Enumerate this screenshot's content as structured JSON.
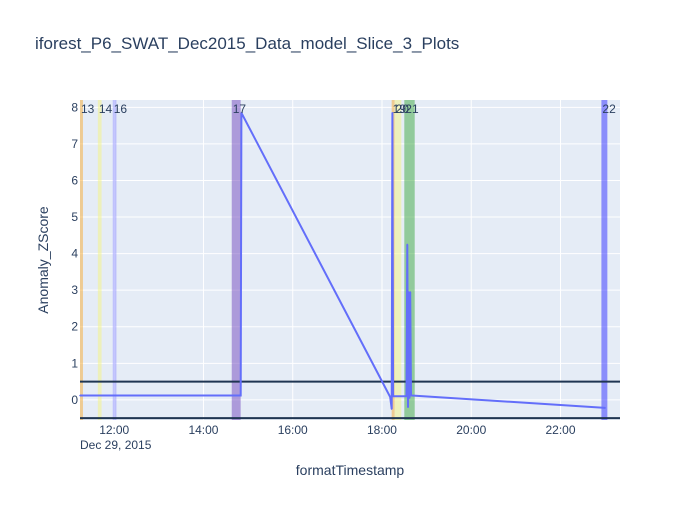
{
  "chart_data": {
    "type": "line",
    "title": "iforest_P6_SWAT_Dec2015_Data_model_Slice_3_Plots",
    "xlabel": "formatTimestamp",
    "ylabel": "Anomaly_ZScore",
    "x_range": [
      "2015-12-29 11:14",
      "2015-12-29 23:20"
    ],
    "ylim": [
      -0.55,
      8.2
    ],
    "x_ticks": [
      {
        "t": "2015-12-29 12:00",
        "label": "12:00"
      },
      {
        "t": "2015-12-29 14:00",
        "label": "14:00"
      },
      {
        "t": "2015-12-29 16:00",
        "label": "16:00"
      },
      {
        "t": "2015-12-29 18:00",
        "label": "18:00"
      },
      {
        "t": "2015-12-29 20:00",
        "label": "20:00"
      },
      {
        "t": "2015-12-29 22:00",
        "label": "22:00"
      }
    ],
    "x_date_label": "Dec 29, 2015",
    "y_ticks": [
      0,
      1,
      2,
      3,
      4,
      5,
      6,
      7,
      8
    ],
    "grid": true,
    "background_color": "#e5ecf6",
    "series": [
      {
        "color": "#636efa",
        "points": [
          [
            "2015-12-29 11:14",
            0.12
          ],
          [
            "2015-12-29 14:50",
            0.12
          ],
          [
            "2015-12-29 14:51",
            7.85
          ],
          [
            "2015-12-29 18:11",
            0.08
          ],
          [
            "2015-12-29 18:13",
            -0.25
          ],
          [
            "2015-12-29 18:14",
            7.85
          ],
          [
            "2015-12-29 18:15",
            0.1
          ],
          [
            "2015-12-29 18:33",
            0.1
          ],
          [
            "2015-12-29 18:34",
            4.25
          ],
          [
            "2015-12-29 18:35",
            -0.2
          ],
          [
            "2015-12-29 18:36",
            2.95
          ],
          [
            "2015-12-29 18:37",
            0.05
          ],
          [
            "2015-12-29 18:38",
            2.95
          ],
          [
            "2015-12-29 18:39",
            0.12
          ],
          [
            "2015-12-29 18:40",
            0.12
          ],
          [
            "2015-12-29 23:00",
            -0.22
          ]
        ]
      }
    ],
    "threshold_lines": [
      0.5,
      -0.5
    ],
    "threshold_color": "#1f3552",
    "anomaly_bands": [
      {
        "label": "13",
        "start": "2015-12-29 11:14",
        "end": "2015-12-29 11:18",
        "color": "#f5b041"
      },
      {
        "label": "14",
        "start": "2015-12-29 11:38",
        "end": "2015-12-29 11:43",
        "color": "#f4f48a"
      },
      {
        "label": "16",
        "start": "2015-12-29 11:58",
        "end": "2015-12-29 12:03",
        "color": "#9b9bff"
      },
      {
        "label": "17",
        "start": "2015-12-29 14:38",
        "end": "2015-12-29 14:50",
        "color": "#7e57c2"
      },
      {
        "label": "19",
        "start": "2015-12-29 18:13",
        "end": "2015-12-29 18:17",
        "color": "#f5b041"
      },
      {
        "label": "20",
        "start": "2015-12-29 18:17",
        "end": "2015-12-29 18:26",
        "color": "#f4f48a"
      },
      {
        "label": "21",
        "start": "2015-12-29 18:30",
        "end": "2015-12-29 18:44",
        "color": "#4caf50"
      },
      {
        "label": "22",
        "start": "2015-12-29 22:55",
        "end": "2015-12-29 23:03",
        "color": "#3f3fff"
      }
    ]
  }
}
